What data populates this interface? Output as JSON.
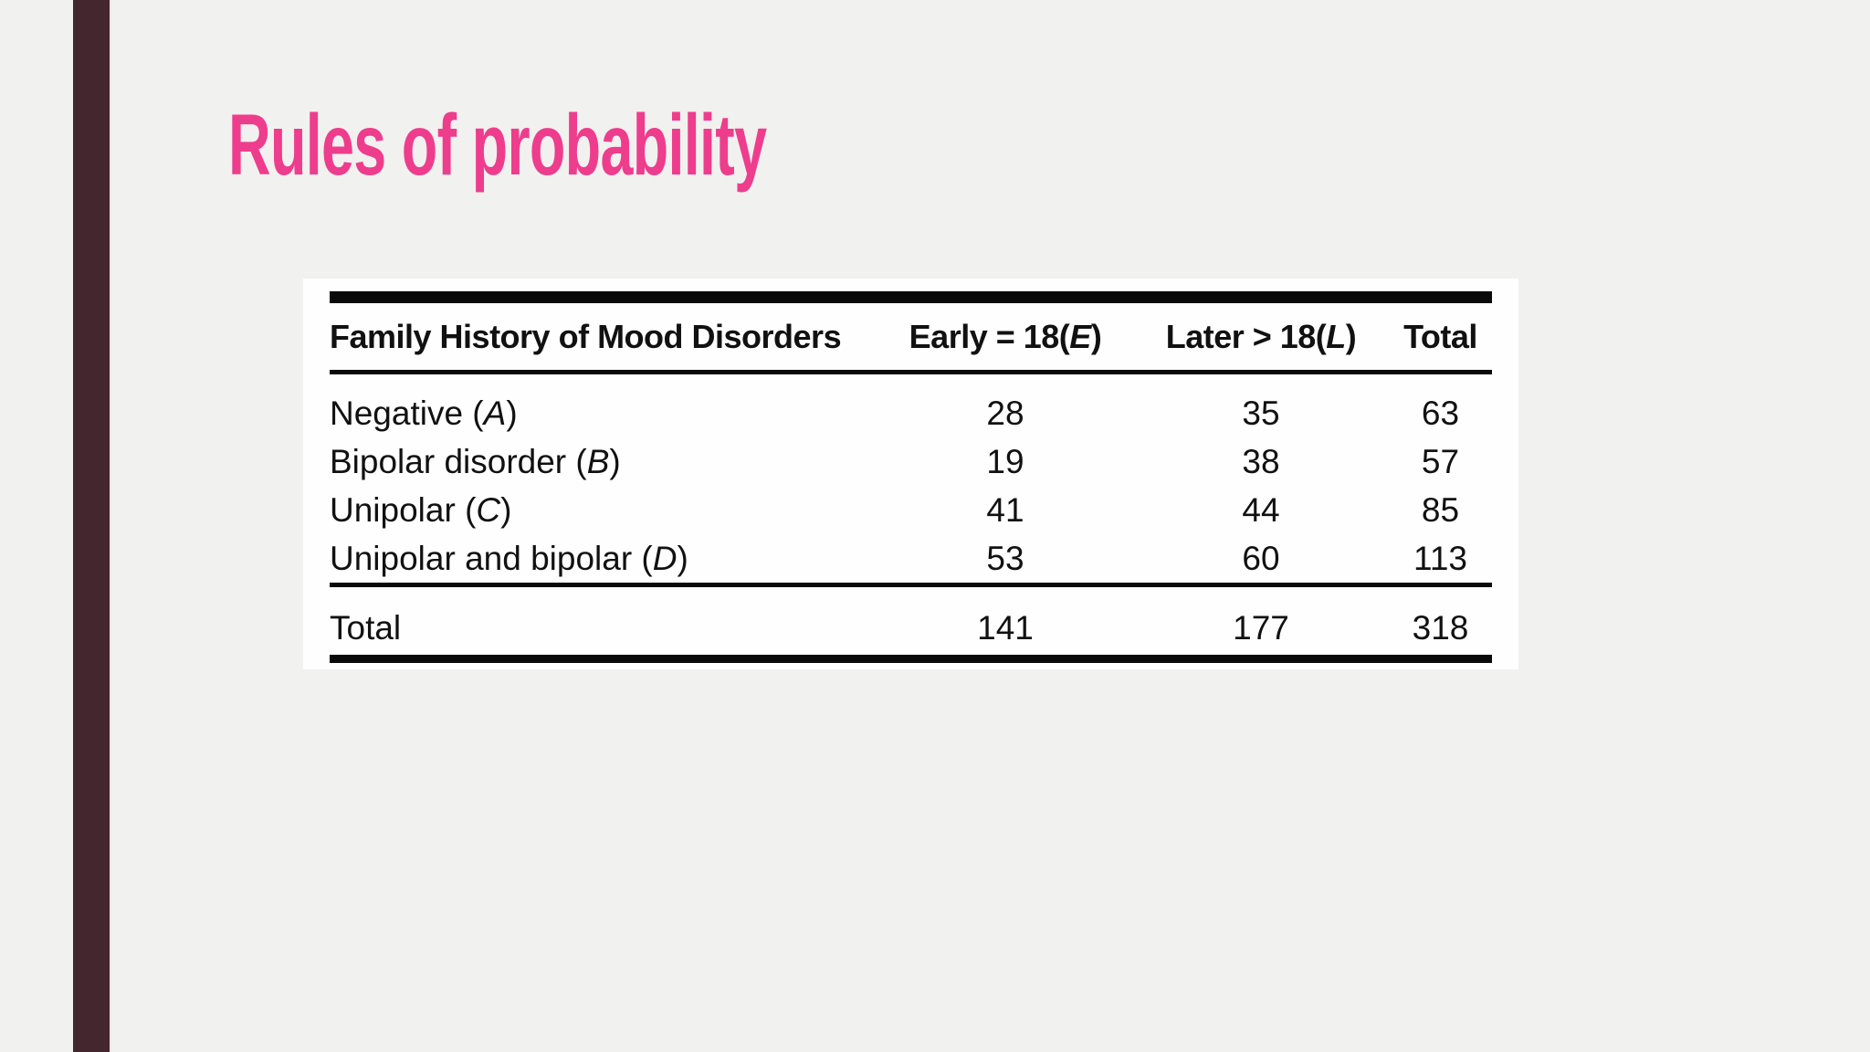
{
  "slide": {
    "title": "Rules of probability",
    "title_color": "#ee3d8d",
    "accent_bar_color": "#44262f",
    "background_color": "#f1f1ef",
    "card_color": "#fefefe",
    "rule_color": "#0a0a0a"
  },
  "table": {
    "header": {
      "family_history": "Family History of Mood Disorders",
      "early_prefix": "Early = 18(",
      "early_var": "E",
      "early_suffix": ")",
      "later_prefix": "Later > 18(",
      "later_var": "L",
      "later_suffix": ")",
      "total": "Total"
    },
    "rows": [
      {
        "label_prefix": "Negative (",
        "label_var": "A",
        "label_suffix": ")",
        "early": "28",
        "later": "35",
        "total": "63"
      },
      {
        "label_prefix": "Bipolar disorder (",
        "label_var": "B",
        "label_suffix": ")",
        "early": "19",
        "later": "38",
        "total": "57"
      },
      {
        "label_prefix": "Unipolar (",
        "label_var": "C",
        "label_suffix": ")",
        "early": "41",
        "later": "44",
        "total": "85"
      },
      {
        "label_prefix": "Unipolar and bipolar (",
        "label_var": "D",
        "label_suffix": ")",
        "early": "53",
        "later": "60",
        "total": "113"
      }
    ],
    "footer": {
      "label": "Total",
      "early": "141",
      "later": "177",
      "total": "318"
    }
  }
}
